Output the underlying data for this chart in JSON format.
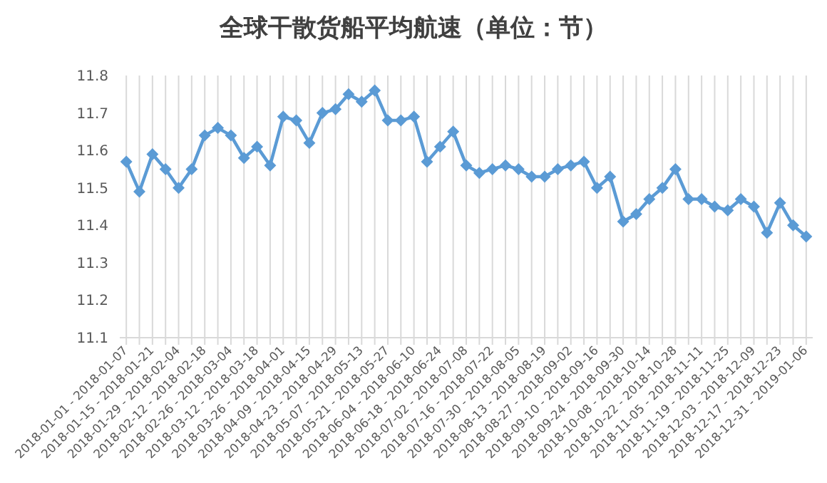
{
  "chart_data": {
    "type": "line",
    "title": "全球干散货船平均航速（单位：节）",
    "categories": [
      "2018-01-01 - 2018-01-07",
      null,
      "2018-01-15 - 2018-01-21",
      null,
      "2018-01-29 - 2018-02-04",
      null,
      "2018-02-12 - 2018-02-18",
      null,
      "2018-02-26 - 2018-03-04",
      null,
      "2018-03-12 - 2018-03-18",
      null,
      "2018-03-26 - 2018-04-01",
      null,
      "2018-04-09 - 2018-04-15",
      null,
      "2018-04-23 - 2018-04-29",
      null,
      "2018-05-07 - 2018-05-13",
      null,
      "2018-05-21 - 2018-05-27",
      null,
      "2018-06-04 - 2018-06-10",
      null,
      "2018-06-18 - 2018-06-24",
      null,
      "2018-07-02 - 2018-07-08",
      null,
      "2018-07-16 - 2018-07-22",
      null,
      "2018-07-30 - 2018-08-05",
      null,
      "2018-08-13 - 2018-08-19",
      null,
      "2018-08-27 - 2018-09-02",
      null,
      "2018-09-10 - 2018-09-16",
      null,
      "2018-09-24 - 2018-09-30",
      null,
      "2018-10-08 - 2018-10-14",
      null,
      "2018-10-22 - 2018-10-28",
      null,
      "2018-11-05 - 2018-11-11",
      null,
      "2018-11-19 - 2018-11-25",
      null,
      "2018-12-03 - 2018-12-09",
      null,
      "2018-12-17 - 2018-12-23",
      null,
      "2018-12-31 - 2019-01-06"
    ],
    "series": [
      {
        "color": "#5b9bd5",
        "values": [
          11.57,
          11.49,
          11.59,
          11.55,
          11.5,
          11.55,
          11.64,
          11.66,
          11.64,
          11.58,
          11.61,
          11.56,
          11.69,
          11.68,
          11.62,
          11.7,
          11.71,
          11.75,
          11.73,
          11.76,
          11.68,
          11.68,
          11.69,
          11.57,
          11.61,
          11.65,
          11.56,
          11.54,
          11.55,
          11.56,
          11.55,
          11.53,
          11.53,
          11.55,
          11.56,
          11.57,
          11.5,
          11.53,
          11.41,
          11.43,
          11.47,
          11.5,
          11.55,
          11.47,
          11.47,
          11.45,
          11.44,
          11.47,
          11.45,
          11.38,
          11.46,
          11.4,
          11.37
        ]
      }
    ],
    "ylim": [
      11.1,
      11.8
    ],
    "yticks": [
      11.1,
      11.2,
      11.3,
      11.4,
      11.5,
      11.6,
      11.7,
      11.8
    ],
    "grid": "x",
    "marker": "diamond",
    "line_style": "solid"
  }
}
